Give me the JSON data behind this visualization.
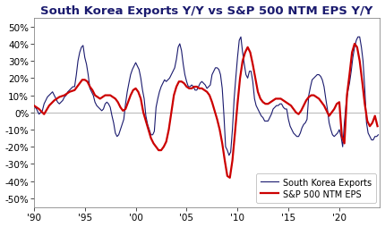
{
  "title": "South Korea Exports Y/Y vs S&P 500 NTM EPS Y/Y",
  "title_fontsize": 9.5,
  "tick_fontsize": 7.5,
  "legend_fontsize": 7,
  "korea_color": "#1a1a6e",
  "sp500_color": "#cc0000",
  "korea_linewidth": 0.8,
  "sp500_linewidth": 1.6,
  "background_color": "#ffffff",
  "ylim": [
    -0.55,
    0.55
  ],
  "yticks": [
    -0.5,
    -0.4,
    -0.3,
    -0.2,
    -0.1,
    0.0,
    0.1,
    0.2,
    0.3,
    0.4,
    0.5
  ],
  "xticks": [
    1990,
    1995,
    2000,
    2005,
    2010,
    2015,
    2020
  ],
  "xtick_labels": [
    "'90",
    "'95",
    "'00",
    "'05",
    "'10",
    "'15",
    "'20"
  ],
  "xlim": [
    1990,
    2024
  ],
  "korea_data": [
    [
      1990.0,
      0.02
    ],
    [
      1990.17,
      0.03
    ],
    [
      1990.33,
      0.01
    ],
    [
      1990.5,
      -0.01
    ],
    [
      1990.67,
      0.0
    ],
    [
      1990.83,
      0.01
    ],
    [
      1991.0,
      0.05
    ],
    [
      1991.17,
      0.07
    ],
    [
      1991.33,
      0.09
    ],
    [
      1991.5,
      0.1
    ],
    [
      1991.67,
      0.11
    ],
    [
      1991.83,
      0.12
    ],
    [
      1992.0,
      0.1
    ],
    [
      1992.17,
      0.08
    ],
    [
      1992.33,
      0.06
    ],
    [
      1992.5,
      0.05
    ],
    [
      1992.67,
      0.06
    ],
    [
      1992.83,
      0.07
    ],
    [
      1993.0,
      0.09
    ],
    [
      1993.17,
      0.1
    ],
    [
      1993.33,
      0.12
    ],
    [
      1993.5,
      0.13
    ],
    [
      1993.67,
      0.14
    ],
    [
      1993.83,
      0.15
    ],
    [
      1994.0,
      0.15
    ],
    [
      1994.17,
      0.22
    ],
    [
      1994.33,
      0.3
    ],
    [
      1994.5,
      0.35
    ],
    [
      1994.67,
      0.38
    ],
    [
      1994.83,
      0.39
    ],
    [
      1995.0,
      0.32
    ],
    [
      1995.17,
      0.28
    ],
    [
      1995.33,
      0.22
    ],
    [
      1995.5,
      0.14
    ],
    [
      1995.67,
      0.12
    ],
    [
      1995.83,
      0.1
    ],
    [
      1996.0,
      0.06
    ],
    [
      1996.17,
      0.04
    ],
    [
      1996.33,
      0.03
    ],
    [
      1996.5,
      0.02
    ],
    [
      1996.67,
      0.01
    ],
    [
      1996.83,
      0.02
    ],
    [
      1997.0,
      0.05
    ],
    [
      1997.17,
      0.06
    ],
    [
      1997.33,
      0.05
    ],
    [
      1997.5,
      0.03
    ],
    [
      1997.67,
      -0.02
    ],
    [
      1997.83,
      -0.06
    ],
    [
      1998.0,
      -0.12
    ],
    [
      1998.17,
      -0.14
    ],
    [
      1998.33,
      -0.13
    ],
    [
      1998.5,
      -0.1
    ],
    [
      1998.67,
      -0.07
    ],
    [
      1998.83,
      -0.04
    ],
    [
      1999.0,
      0.05
    ],
    [
      1999.17,
      0.12
    ],
    [
      1999.33,
      0.17
    ],
    [
      1999.5,
      0.22
    ],
    [
      1999.67,
      0.25
    ],
    [
      1999.83,
      0.27
    ],
    [
      2000.0,
      0.29
    ],
    [
      2000.17,
      0.27
    ],
    [
      2000.33,
      0.25
    ],
    [
      2000.5,
      0.2
    ],
    [
      2000.67,
      0.13
    ],
    [
      2000.83,
      0.08
    ],
    [
      2001.0,
      -0.02
    ],
    [
      2001.17,
      -0.07
    ],
    [
      2001.33,
      -0.1
    ],
    [
      2001.5,
      -0.13
    ],
    [
      2001.67,
      -0.13
    ],
    [
      2001.83,
      -0.11
    ],
    [
      2002.0,
      0.03
    ],
    [
      2002.17,
      0.08
    ],
    [
      2002.33,
      0.12
    ],
    [
      2002.5,
      0.15
    ],
    [
      2002.67,
      0.17
    ],
    [
      2002.83,
      0.19
    ],
    [
      2003.0,
      0.18
    ],
    [
      2003.17,
      0.19
    ],
    [
      2003.33,
      0.2
    ],
    [
      2003.5,
      0.22
    ],
    [
      2003.67,
      0.24
    ],
    [
      2003.83,
      0.26
    ],
    [
      2004.0,
      0.31
    ],
    [
      2004.17,
      0.38
    ],
    [
      2004.33,
      0.4
    ],
    [
      2004.5,
      0.36
    ],
    [
      2004.67,
      0.28
    ],
    [
      2004.83,
      0.22
    ],
    [
      2005.0,
      0.18
    ],
    [
      2005.17,
      0.15
    ],
    [
      2005.33,
      0.15
    ],
    [
      2005.5,
      0.16
    ],
    [
      2005.67,
      0.15
    ],
    [
      2005.83,
      0.13
    ],
    [
      2006.0,
      0.13
    ],
    [
      2006.17,
      0.15
    ],
    [
      2006.33,
      0.17
    ],
    [
      2006.5,
      0.18
    ],
    [
      2006.67,
      0.17
    ],
    [
      2006.83,
      0.16
    ],
    [
      2007.0,
      0.14
    ],
    [
      2007.17,
      0.15
    ],
    [
      2007.33,
      0.16
    ],
    [
      2007.5,
      0.22
    ],
    [
      2007.67,
      0.24
    ],
    [
      2007.83,
      0.26
    ],
    [
      2008.0,
      0.26
    ],
    [
      2008.17,
      0.25
    ],
    [
      2008.33,
      0.22
    ],
    [
      2008.5,
      0.14
    ],
    [
      2008.67,
      -0.02
    ],
    [
      2008.83,
      -0.2
    ],
    [
      2009.0,
      -0.22
    ],
    [
      2009.17,
      -0.25
    ],
    [
      2009.33,
      -0.23
    ],
    [
      2009.5,
      -0.1
    ],
    [
      2009.67,
      0.08
    ],
    [
      2009.83,
      0.2
    ],
    [
      2010.0,
      0.32
    ],
    [
      2010.17,
      0.42
    ],
    [
      2010.33,
      0.44
    ],
    [
      2010.5,
      0.35
    ],
    [
      2010.67,
      0.28
    ],
    [
      2010.83,
      0.22
    ],
    [
      2011.0,
      0.2
    ],
    [
      2011.17,
      0.24
    ],
    [
      2011.33,
      0.24
    ],
    [
      2011.5,
      0.18
    ],
    [
      2011.67,
      0.08
    ],
    [
      2011.83,
      0.04
    ],
    [
      2012.0,
      0.02
    ],
    [
      2012.17,
      0.0
    ],
    [
      2012.33,
      -0.02
    ],
    [
      2012.5,
      -0.03
    ],
    [
      2012.67,
      -0.05
    ],
    [
      2012.83,
      -0.05
    ],
    [
      2013.0,
      -0.05
    ],
    [
      2013.17,
      -0.03
    ],
    [
      2013.33,
      -0.01
    ],
    [
      2013.5,
      0.02
    ],
    [
      2013.67,
      0.03
    ],
    [
      2013.83,
      0.04
    ],
    [
      2014.0,
      0.04
    ],
    [
      2014.17,
      0.05
    ],
    [
      2014.33,
      0.05
    ],
    [
      2014.5,
      0.03
    ],
    [
      2014.67,
      0.02
    ],
    [
      2014.83,
      0.02
    ],
    [
      2015.0,
      -0.04
    ],
    [
      2015.17,
      -0.08
    ],
    [
      2015.33,
      -0.1
    ],
    [
      2015.5,
      -0.12
    ],
    [
      2015.67,
      -0.13
    ],
    [
      2015.83,
      -0.14
    ],
    [
      2016.0,
      -0.14
    ],
    [
      2016.17,
      -0.12
    ],
    [
      2016.33,
      -0.09
    ],
    [
      2016.5,
      -0.07
    ],
    [
      2016.67,
      -0.06
    ],
    [
      2016.83,
      -0.04
    ],
    [
      2017.0,
      0.1
    ],
    [
      2017.17,
      0.15
    ],
    [
      2017.33,
      0.19
    ],
    [
      2017.5,
      0.2
    ],
    [
      2017.67,
      0.21
    ],
    [
      2017.83,
      0.22
    ],
    [
      2018.0,
      0.22
    ],
    [
      2018.17,
      0.21
    ],
    [
      2018.33,
      0.19
    ],
    [
      2018.5,
      0.15
    ],
    [
      2018.67,
      0.08
    ],
    [
      2018.83,
      0.02
    ],
    [
      2019.0,
      -0.06
    ],
    [
      2019.17,
      -0.1
    ],
    [
      2019.33,
      -0.13
    ],
    [
      2019.5,
      -0.14
    ],
    [
      2019.67,
      -0.13
    ],
    [
      2019.83,
      -0.12
    ],
    [
      2020.0,
      -0.1
    ],
    [
      2020.17,
      -0.14
    ],
    [
      2020.33,
      -0.2
    ],
    [
      2020.5,
      -0.06
    ],
    [
      2020.67,
      0.05
    ],
    [
      2020.83,
      0.12
    ],
    [
      2021.0,
      0.17
    ],
    [
      2021.17,
      0.24
    ],
    [
      2021.33,
      0.32
    ],
    [
      2021.5,
      0.38
    ],
    [
      2021.67,
      0.42
    ],
    [
      2021.83,
      0.44
    ],
    [
      2022.0,
      0.44
    ],
    [
      2022.17,
      0.38
    ],
    [
      2022.33,
      0.3
    ],
    [
      2022.5,
      0.14
    ],
    [
      2022.67,
      -0.06
    ],
    [
      2022.83,
      -0.12
    ],
    [
      2023.0,
      -0.14
    ],
    [
      2023.17,
      -0.16
    ],
    [
      2023.33,
      -0.16
    ],
    [
      2023.5,
      -0.14
    ],
    [
      2023.67,
      -0.14
    ],
    [
      2023.83,
      -0.13
    ]
  ],
  "sp500_data": [
    [
      1990.0,
      0.04
    ],
    [
      1990.5,
      0.02
    ],
    [
      1991.0,
      -0.01
    ],
    [
      1991.5,
      0.04
    ],
    [
      1992.0,
      0.07
    ],
    [
      1992.5,
      0.09
    ],
    [
      1993.0,
      0.1
    ],
    [
      1993.5,
      0.12
    ],
    [
      1994.0,
      0.13
    ],
    [
      1994.25,
      0.15
    ],
    [
      1994.5,
      0.17
    ],
    [
      1994.75,
      0.19
    ],
    [
      1995.0,
      0.19
    ],
    [
      1995.25,
      0.18
    ],
    [
      1995.5,
      0.15
    ],
    [
      1995.75,
      0.13
    ],
    [
      1996.0,
      0.1
    ],
    [
      1996.25,
      0.09
    ],
    [
      1996.5,
      0.08
    ],
    [
      1996.75,
      0.09
    ],
    [
      1997.0,
      0.1
    ],
    [
      1997.25,
      0.1
    ],
    [
      1997.5,
      0.1
    ],
    [
      1997.75,
      0.09
    ],
    [
      1998.0,
      0.08
    ],
    [
      1998.25,
      0.06
    ],
    [
      1998.5,
      0.03
    ],
    [
      1998.75,
      0.01
    ],
    [
      1999.0,
      0.02
    ],
    [
      1999.25,
      0.06
    ],
    [
      1999.5,
      0.1
    ],
    [
      1999.75,
      0.13
    ],
    [
      2000.0,
      0.14
    ],
    [
      2000.25,
      0.12
    ],
    [
      2000.5,
      0.08
    ],
    [
      2000.75,
      0.0
    ],
    [
      2001.0,
      -0.05
    ],
    [
      2001.25,
      -0.1
    ],
    [
      2001.5,
      -0.15
    ],
    [
      2001.75,
      -0.18
    ],
    [
      2002.0,
      -0.2
    ],
    [
      2002.25,
      -0.22
    ],
    [
      2002.5,
      -0.22
    ],
    [
      2002.75,
      -0.2
    ],
    [
      2003.0,
      -0.17
    ],
    [
      2003.25,
      -0.1
    ],
    [
      2003.5,
      0.0
    ],
    [
      2003.75,
      0.1
    ],
    [
      2004.0,
      0.15
    ],
    [
      2004.25,
      0.18
    ],
    [
      2004.5,
      0.18
    ],
    [
      2004.75,
      0.17
    ],
    [
      2005.0,
      0.15
    ],
    [
      2005.25,
      0.14
    ],
    [
      2005.5,
      0.14
    ],
    [
      2005.75,
      0.15
    ],
    [
      2006.0,
      0.15
    ],
    [
      2006.25,
      0.14
    ],
    [
      2006.5,
      0.14
    ],
    [
      2006.75,
      0.13
    ],
    [
      2007.0,
      0.12
    ],
    [
      2007.25,
      0.1
    ],
    [
      2007.5,
      0.06
    ],
    [
      2007.75,
      0.01
    ],
    [
      2008.0,
      -0.04
    ],
    [
      2008.25,
      -0.1
    ],
    [
      2008.5,
      -0.18
    ],
    [
      2008.75,
      -0.28
    ],
    [
      2009.0,
      -0.37
    ],
    [
      2009.25,
      -0.38
    ],
    [
      2009.5,
      -0.28
    ],
    [
      2009.75,
      -0.12
    ],
    [
      2010.0,
      0.05
    ],
    [
      2010.25,
      0.2
    ],
    [
      2010.5,
      0.3
    ],
    [
      2010.75,
      0.35
    ],
    [
      2011.0,
      0.38
    ],
    [
      2011.25,
      0.35
    ],
    [
      2011.5,
      0.28
    ],
    [
      2011.75,
      0.2
    ],
    [
      2012.0,
      0.12
    ],
    [
      2012.25,
      0.08
    ],
    [
      2012.5,
      0.06
    ],
    [
      2012.75,
      0.05
    ],
    [
      2013.0,
      0.05
    ],
    [
      2013.25,
      0.06
    ],
    [
      2013.5,
      0.07
    ],
    [
      2013.75,
      0.08
    ],
    [
      2014.0,
      0.08
    ],
    [
      2014.25,
      0.08
    ],
    [
      2014.5,
      0.07
    ],
    [
      2014.75,
      0.06
    ],
    [
      2015.0,
      0.05
    ],
    [
      2015.25,
      0.04
    ],
    [
      2015.5,
      0.02
    ],
    [
      2015.75,
      0.0
    ],
    [
      2016.0,
      -0.01
    ],
    [
      2016.25,
      0.01
    ],
    [
      2016.5,
      0.04
    ],
    [
      2016.75,
      0.07
    ],
    [
      2017.0,
      0.09
    ],
    [
      2017.25,
      0.1
    ],
    [
      2017.5,
      0.1
    ],
    [
      2017.75,
      0.09
    ],
    [
      2018.0,
      0.08
    ],
    [
      2018.25,
      0.06
    ],
    [
      2018.5,
      0.04
    ],
    [
      2018.75,
      0.01
    ],
    [
      2019.0,
      -0.02
    ],
    [
      2019.25,
      0.0
    ],
    [
      2019.5,
      0.02
    ],
    [
      2019.75,
      0.05
    ],
    [
      2020.0,
      0.06
    ],
    [
      2020.25,
      -0.14
    ],
    [
      2020.5,
      -0.18
    ],
    [
      2020.75,
      0.1
    ],
    [
      2021.0,
      0.22
    ],
    [
      2021.25,
      0.35
    ],
    [
      2021.5,
      0.4
    ],
    [
      2021.75,
      0.38
    ],
    [
      2022.0,
      0.3
    ],
    [
      2022.25,
      0.18
    ],
    [
      2022.5,
      0.05
    ],
    [
      2022.75,
      -0.05
    ],
    [
      2023.0,
      -0.08
    ],
    [
      2023.25,
      -0.06
    ],
    [
      2023.5,
      -0.02
    ],
    [
      2023.75,
      -0.08
    ]
  ],
  "legend_labels": [
    "South Korea Exports",
    "S&P 500 NTM EPS"
  ],
  "zero_line_color": "#aaaaaa"
}
